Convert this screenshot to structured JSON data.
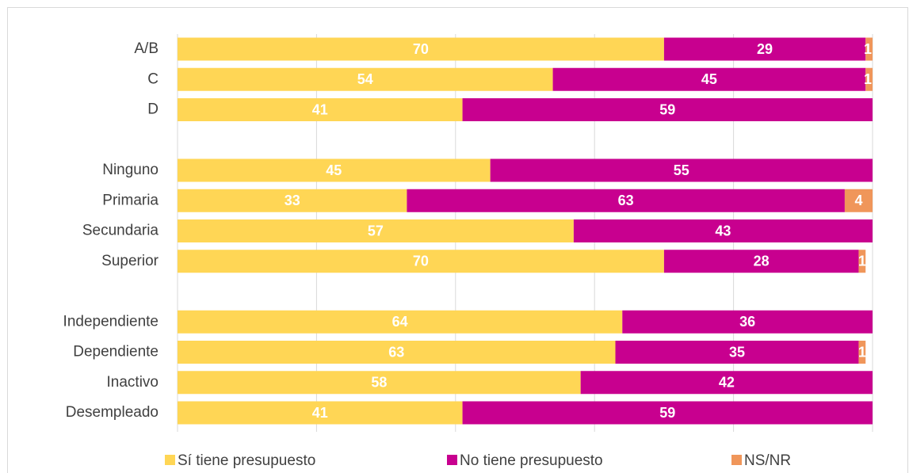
{
  "chart_data": {
    "type": "stacked-barh",
    "categories": [
      "A/B",
      "C",
      "D",
      null,
      "Ninguno",
      "Primaria",
      "Secundaria",
      "Superior",
      null,
      "Independiente",
      "Dependiente",
      "Inactivo",
      "Desempleado"
    ],
    "series": [
      {
        "name": "Sí tiene presupuesto",
        "color": "#FFD655",
        "values": [
          70,
          54,
          41,
          null,
          45,
          33,
          57,
          70,
          null,
          64,
          63,
          58,
          41
        ]
      },
      {
        "name": "No tiene presupuesto",
        "color": "#C8008F",
        "values": [
          29,
          45,
          59,
          null,
          55,
          63,
          43,
          28,
          null,
          36,
          35,
          42,
          59
        ]
      },
      {
        "name": "NS/NR",
        "color": "#F0965A",
        "values": [
          1,
          1,
          null,
          null,
          null,
          4,
          null,
          1,
          null,
          null,
          1,
          null,
          null
        ]
      }
    ],
    "xlim": [
      0,
      100
    ],
    "xticks": [
      0,
      20,
      40,
      60,
      80,
      100
    ],
    "grid": true,
    "legend": "bottom"
  }
}
